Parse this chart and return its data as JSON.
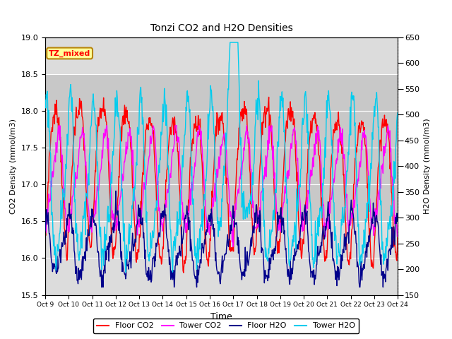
{
  "title": "Tonzi CO2 and H2O Densities",
  "xlabel": "Time",
  "ylabel_left": "CO2 Density (mmol/m3)",
  "ylabel_right": "H2O Density (mmol/m3)",
  "ylim_left": [
    15.5,
    19.0
  ],
  "ylim_right": [
    150,
    650
  ],
  "xtick_labels": [
    "Oct 9",
    "Oct 10Oct",
    "11Oct",
    "12Oct",
    "13Oct",
    "14Oct",
    "15Oct",
    "16Oct",
    "17Oct",
    "18Oct",
    "19Oct",
    "20Oct",
    "21Oct",
    "22Oct",
    "23Oct 24"
  ],
  "annotation_text": "TZ_mixed",
  "colors": {
    "floor_co2": "#FF0000",
    "tower_co2": "#FF00FF",
    "floor_h2o": "#00008B",
    "tower_h2o": "#00CCEE"
  },
  "legend_labels": [
    "Floor CO2",
    "Tower CO2",
    "Floor H2O",
    "Tower H2O"
  ],
  "background_color": "#FFFFFF",
  "plot_bg_color": "#DCDCDC",
  "shaded_color": "#C8C8C8",
  "shaded_region": [
    16.5,
    18.5
  ],
  "n_points": 720,
  "n_days": 15,
  "seed": 7
}
